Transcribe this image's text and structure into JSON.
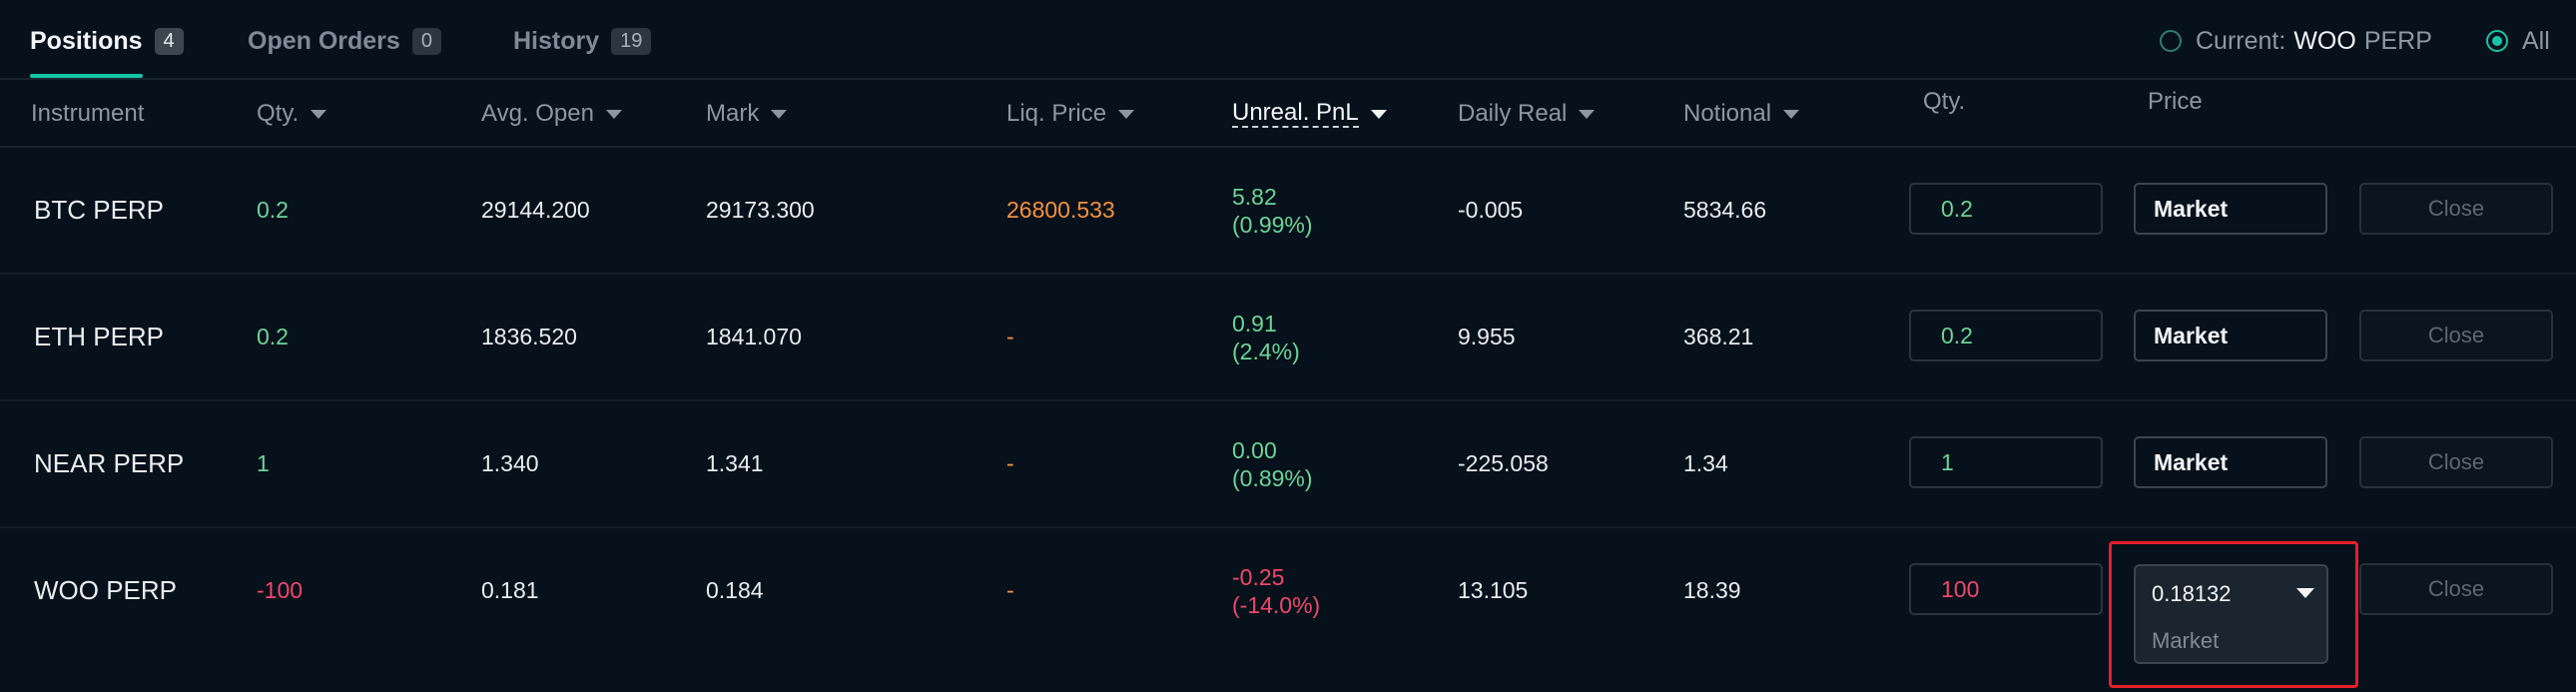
{
  "tabs": [
    {
      "label": "Positions",
      "count": "4"
    },
    {
      "label": "Open Orders",
      "count": "0"
    },
    {
      "label": "History",
      "count": "19"
    }
  ],
  "filters": {
    "current_label": "Current:",
    "current_symbol": "WOO",
    "current_suffix": "PERP",
    "all_label": "All",
    "selected": "All"
  },
  "columns": {
    "instrument": "Instrument",
    "qty": "Qty.",
    "avg_open": "Avg. Open",
    "mark": "Mark",
    "liq_price": "Liq. Price",
    "unreal_pnl": "Unreal. PnL",
    "daily_real": "Daily Real",
    "notional": "Notional",
    "close_qty": "Qty.",
    "close_price": "Price"
  },
  "rows": [
    {
      "instrument": "BTC PERP",
      "qty": "0.2",
      "avg_open": "29144.200",
      "mark": "29173.300",
      "liq_price": "26800.533",
      "pnl_value": "5.82",
      "pnl_pct": "(0.99%)",
      "daily_real": "-0.005",
      "notional": "5834.66",
      "close_qty": "0.2",
      "price": "Market",
      "close_label": "Close"
    },
    {
      "instrument": "ETH PERP",
      "qty": "0.2",
      "avg_open": "1836.520",
      "mark": "1841.070",
      "liq_price": "-",
      "pnl_value": "0.91",
      "pnl_pct": "(2.4%)",
      "daily_real": "9.955",
      "notional": "368.21",
      "close_qty": "0.2",
      "price": "Market",
      "close_label": "Close"
    },
    {
      "instrument": "NEAR PERP",
      "qty": "1",
      "avg_open": "1.340",
      "mark": "1.341",
      "liq_price": "-",
      "pnl_value": "0.00",
      "pnl_pct": "(0.89%)",
      "daily_real": "-225.058",
      "notional": "1.34",
      "close_qty": "1",
      "price": "Market",
      "close_label": "Close"
    },
    {
      "instrument": "WOO PERP",
      "qty": "-100",
      "avg_open": "0.181",
      "mark": "0.184",
      "liq_price": "-",
      "pnl_value": "-0.25",
      "pnl_pct": "(-14.0%)",
      "daily_real": "13.105",
      "notional": "18.39",
      "close_qty": "100",
      "price": "0.18132",
      "close_label": "Close"
    }
  ],
  "woo_dropdown": {
    "selected": "0.18132",
    "options": [
      "Market"
    ]
  },
  "colors": {
    "accent": "#18c4a6",
    "positive": "#6cd497",
    "negative": "#f0476b",
    "liq": "#f6913d",
    "highlight": "#e4202a"
  }
}
